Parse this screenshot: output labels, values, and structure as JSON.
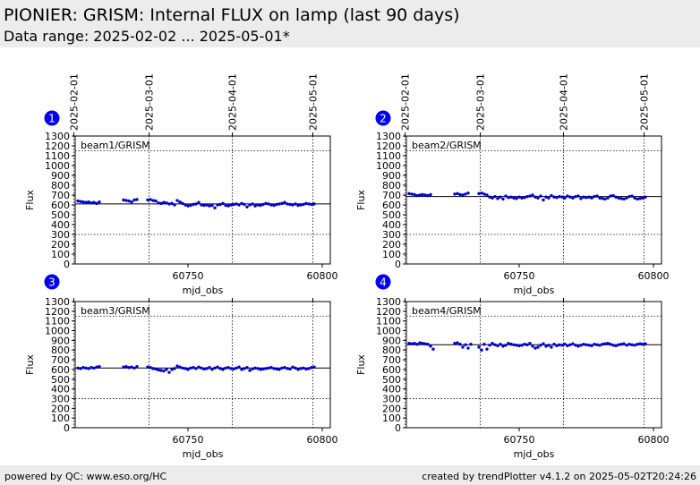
{
  "header": {
    "title": "PIONIER: GRISM: Internal FLUX on lamp (last 90 days)",
    "subtitle": "Data range: 2025-02-02 ... 2025-05-01*"
  },
  "footer": {
    "left": "powered by QC: www.eso.org/HC",
    "right": "created by trendPlotter v4.1.2 on 2025-05-02T20:24:26"
  },
  "colors": {
    "points": "#0000cc",
    "badge": "#0000ee",
    "header_bg": "#ececec",
    "reference_line": "#000000"
  },
  "chart_data": [
    {
      "type": "scatter",
      "panel_number": "1",
      "series_label": "beam1/GRISM",
      "xlabel": "mjd_obs",
      "ylabel": "Flux",
      "xlim": [
        60708,
        60803
      ],
      "ylim": [
        0,
        1300
      ],
      "x_ticks": [
        60750,
        60800
      ],
      "y_ticks": [
        0,
        100,
        200,
        300,
        400,
        500,
        600,
        700,
        800,
        900,
        1000,
        1100,
        1200,
        1300
      ],
      "date_ticks": [
        {
          "label": "2025-02-01",
          "mjd": 60707.5
        },
        {
          "label": "2025-03-01",
          "mjd": 60735.5
        },
        {
          "label": "2025-04-01",
          "mjd": 60766.5
        },
        {
          "label": "2025-05-01",
          "mjd": 60796.5
        }
      ],
      "reference_line": 610,
      "hlines": [
        300,
        1150
      ],
      "x": [
        60709,
        60710,
        60711,
        60712,
        60713,
        60714,
        60715,
        60716,
        60717,
        60726,
        60727,
        60728,
        60729,
        60730,
        60731,
        60735,
        60736,
        60737,
        60738,
        60739,
        60740,
        60741,
        60742,
        60743,
        60744,
        60745,
        60746,
        60747,
        60748,
        60749,
        60750,
        60751,
        60752,
        60753,
        60754,
        60755,
        60756,
        60757,
        60758,
        60759,
        60760,
        60761,
        60762,
        60763,
        60764,
        60765,
        60766,
        60767,
        60768,
        60769,
        60770,
        60771,
        60772,
        60773,
        60774,
        60775,
        60776,
        60777,
        60778,
        60779,
        60780,
        60781,
        60782,
        60783,
        60784,
        60785,
        60786,
        60787,
        60788,
        60789,
        60790,
        60791,
        60792,
        60793,
        60794,
        60795,
        60796,
        60797
      ],
      "y": [
        640,
        635,
        630,
        625,
        630,
        620,
        625,
        615,
        630,
        650,
        645,
        640,
        630,
        650,
        655,
        650,
        655,
        645,
        640,
        620,
        615,
        625,
        620,
        610,
        615,
        600,
        645,
        630,
        615,
        600,
        590,
        595,
        605,
        610,
        625,
        600,
        595,
        600,
        590,
        595,
        570,
        600,
        605,
        615,
        595,
        590,
        600,
        605,
        610,
        600,
        615,
        605,
        580,
        600,
        610,
        590,
        600,
        595,
        605,
        615,
        610,
        600,
        595,
        605,
        610,
        615,
        625,
        610,
        605,
        600,
        610,
        595,
        600,
        605,
        615,
        610,
        605,
        610
      ]
    },
    {
      "type": "scatter",
      "panel_number": "2",
      "series_label": "beam2/GRISM",
      "xlabel": "mjd_obs",
      "ylabel": "Flux",
      "xlim": [
        60708,
        60803
      ],
      "ylim": [
        0,
        1300
      ],
      "x_ticks": [
        60750,
        60800
      ],
      "y_ticks": [
        0,
        100,
        200,
        300,
        400,
        500,
        600,
        700,
        800,
        900,
        1000,
        1100,
        1200,
        1300
      ],
      "date_ticks": [
        {
          "label": "2025-02-01",
          "mjd": 60707.5
        },
        {
          "label": "2025-03-01",
          "mjd": 60735.5
        },
        {
          "label": "2025-04-01",
          "mjd": 60766.5
        },
        {
          "label": "2025-05-01",
          "mjd": 60796.5
        }
      ],
      "reference_line": 685,
      "hlines": [
        300,
        1150
      ],
      "x": [
        60709,
        60710,
        60711,
        60712,
        60713,
        60714,
        60715,
        60716,
        60717,
        60726,
        60727,
        60728,
        60729,
        60730,
        60731,
        60735,
        60736,
        60737,
        60738,
        60739,
        60740,
        60741,
        60742,
        60743,
        60744,
        60745,
        60746,
        60747,
        60748,
        60749,
        60750,
        60751,
        60752,
        60753,
        60754,
        60755,
        60756,
        60757,
        60758,
        60759,
        60760,
        60761,
        60762,
        60763,
        60764,
        60765,
        60766,
        60767,
        60768,
        60769,
        60770,
        60771,
        60772,
        60773,
        60774,
        60775,
        60776,
        60777,
        60778,
        60779,
        60780,
        60781,
        60782,
        60783,
        60784,
        60785,
        60786,
        60787,
        60788,
        60789,
        60790,
        60791,
        60792,
        60793,
        60794,
        60795,
        60796,
        60797
      ],
      "y": [
        715,
        710,
        705,
        695,
        700,
        705,
        700,
        695,
        705,
        710,
        715,
        705,
        700,
        710,
        720,
        715,
        720,
        710,
        700,
        680,
        670,
        685,
        665,
        680,
        660,
        690,
        675,
        680,
        670,
        665,
        680,
        670,
        675,
        685,
        690,
        700,
        680,
        670,
        690,
        650,
        680,
        670,
        695,
        680,
        675,
        685,
        680,
        670,
        690,
        680,
        670,
        685,
        690,
        665,
        680,
        675,
        680,
        670,
        685,
        690,
        670,
        665,
        660,
        670,
        690,
        695,
        680,
        670,
        665,
        660,
        670,
        685,
        690,
        670,
        660,
        665,
        670,
        680
      ]
    },
    {
      "type": "scatter",
      "panel_number": "3",
      "series_label": "beam3/GRISM",
      "xlabel": "mjd_obs",
      "ylabel": "Flux",
      "xlim": [
        60708,
        60803
      ],
      "ylim": [
        0,
        1300
      ],
      "x_ticks": [
        60750,
        60800
      ],
      "y_ticks": [
        0,
        100,
        200,
        300,
        400,
        500,
        600,
        700,
        800,
        900,
        1000,
        1100,
        1200,
        1300
      ],
      "date_ticks": [
        {
          "label": "2025-02-01",
          "mjd": 60707.5
        },
        {
          "label": "2025-03-01",
          "mjd": 60735.5
        },
        {
          "label": "2025-04-01",
          "mjd": 60766.5
        },
        {
          "label": "2025-05-01",
          "mjd": 60796.5
        }
      ],
      "reference_line": 615,
      "hlines": [
        300,
        1150
      ],
      "x": [
        60709,
        60710,
        60711,
        60712,
        60713,
        60714,
        60715,
        60716,
        60717,
        60726,
        60727,
        60728,
        60729,
        60730,
        60731,
        60735,
        60736,
        60737,
        60738,
        60739,
        60740,
        60741,
        60742,
        60743,
        60744,
        60745,
        60746,
        60747,
        60748,
        60749,
        60750,
        60751,
        60752,
        60753,
        60754,
        60755,
        60756,
        60757,
        60758,
        60759,
        60760,
        60761,
        60762,
        60763,
        60764,
        60765,
        60766,
        60767,
        60768,
        60769,
        60770,
        60771,
        60772,
        60773,
        60774,
        60775,
        60776,
        60777,
        60778,
        60779,
        60780,
        60781,
        60782,
        60783,
        60784,
        60785,
        60786,
        60787,
        60788,
        60789,
        60790,
        60791,
        60792,
        60793,
        60794,
        60795,
        60796,
        60797
      ],
      "y": [
        615,
        610,
        620,
        615,
        610,
        620,
        615,
        625,
        630,
        625,
        630,
        620,
        625,
        615,
        630,
        625,
        620,
        610,
        605,
        595,
        590,
        585,
        600,
        570,
        600,
        610,
        635,
        625,
        615,
        610,
        600,
        615,
        620,
        610,
        625,
        615,
        605,
        610,
        620,
        600,
        615,
        625,
        610,
        600,
        615,
        620,
        610,
        605,
        615,
        625,
        600,
        610,
        620,
        590,
        605,
        615,
        610,
        600,
        605,
        610,
        615,
        620,
        610,
        605,
        600,
        615,
        620,
        610,
        605,
        625,
        615,
        600,
        610,
        615,
        605,
        610,
        620,
        625
      ]
    },
    {
      "type": "scatter",
      "panel_number": "4",
      "series_label": "beam4/GRISM",
      "xlabel": "mjd_obs",
      "ylabel": "Flux",
      "xlim": [
        60708,
        60803
      ],
      "ylim": [
        0,
        1300
      ],
      "x_ticks": [
        60750,
        60800
      ],
      "y_ticks": [
        0,
        100,
        200,
        300,
        400,
        500,
        600,
        700,
        800,
        900,
        1000,
        1100,
        1200,
        1300
      ],
      "date_ticks": [
        {
          "label": "2025-02-01",
          "mjd": 60707.5
        },
        {
          "label": "2025-03-01",
          "mjd": 60735.5
        },
        {
          "label": "2025-04-01",
          "mjd": 60766.5
        },
        {
          "label": "2025-05-01",
          "mjd": 60796.5
        }
      ],
      "reference_line": 855,
      "hlines": [
        300,
        1150
      ],
      "x": [
        60709,
        60710,
        60711,
        60712,
        60713,
        60714,
        60715,
        60716,
        60717,
        60718,
        60726,
        60727,
        60728,
        60729,
        60730,
        60731,
        60732,
        60735,
        60736,
        60737,
        60738,
        60739,
        60740,
        60741,
        60742,
        60743,
        60744,
        60745,
        60746,
        60747,
        60748,
        60749,
        60750,
        60751,
        60752,
        60753,
        60754,
        60755,
        60756,
        60757,
        60758,
        60759,
        60760,
        60761,
        60762,
        60763,
        60764,
        60765,
        60766,
        60767,
        60768,
        60769,
        60770,
        60771,
        60772,
        60773,
        60774,
        60775,
        60776,
        60777,
        60778,
        60779,
        60780,
        60781,
        60782,
        60783,
        60784,
        60785,
        60786,
        60787,
        60788,
        60789,
        60790,
        60791,
        60792,
        60793,
        60794,
        60795,
        60796,
        60797
      ],
      "y": [
        870,
        865,
        870,
        860,
        875,
        870,
        865,
        860,
        840,
        810,
        870,
        875,
        860,
        830,
        855,
        820,
        860,
        830,
        800,
        860,
        810,
        850,
        870,
        855,
        845,
        860,
        840,
        850,
        870,
        860,
        855,
        850,
        845,
        850,
        860,
        855,
        870,
        840,
        820,
        830,
        850,
        865,
        840,
        850,
        830,
        860,
        845,
        855,
        850,
        860,
        845,
        855,
        865,
        850,
        840,
        850,
        860,
        855,
        850,
        845,
        860,
        855,
        850,
        860,
        865,
        870,
        860,
        850,
        845,
        855,
        860,
        865,
        850,
        860,
        855,
        850,
        860,
        865,
        860,
        865
      ]
    }
  ]
}
